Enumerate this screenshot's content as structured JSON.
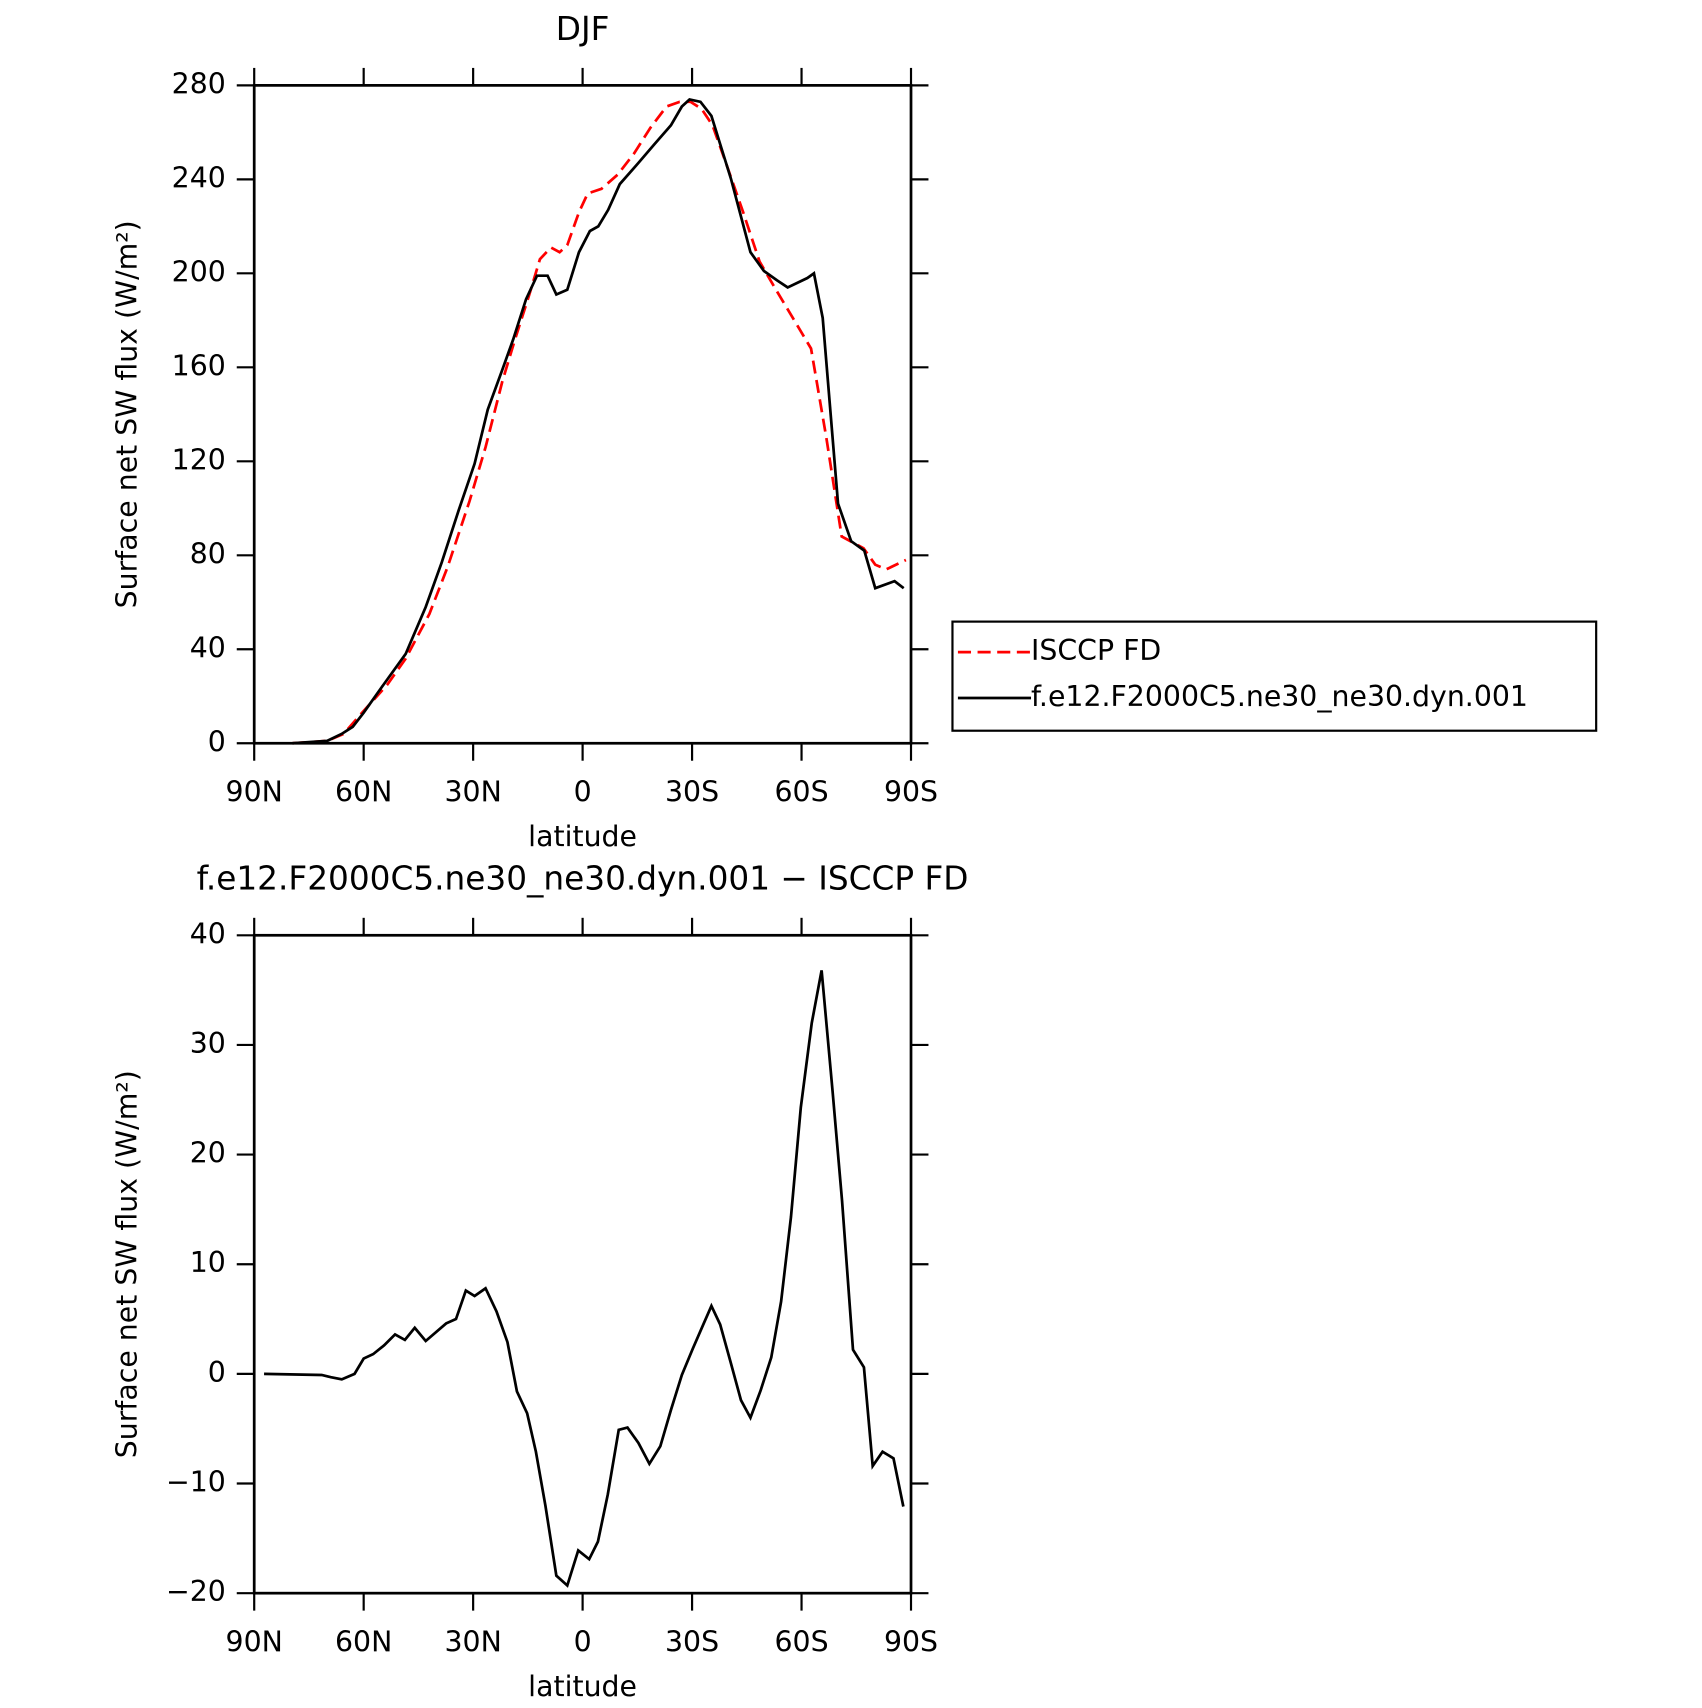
{
  "chart_data": [
    {
      "type": "line",
      "title": "DJF",
      "xlabel": "latitude",
      "ylabel": "Surface net SW flux (W/m²)",
      "xlim": [
        90,
        -90
      ],
      "xticks": [
        {
          "value": 90,
          "label": "90N"
        },
        {
          "value": 60,
          "label": "60N"
        },
        {
          "value": 30,
          "label": "30N"
        },
        0,
        {
          "value": -30,
          "label": "30S"
        },
        {
          "value": -60,
          "label": "60S"
        },
        {
          "value": -90,
          "label": "90S"
        }
      ],
      "ylim": [
        0,
        280
      ],
      "yticks": [
        0,
        40,
        80,
        120,
        160,
        200,
        240,
        280
      ],
      "legend": "right",
      "series": [
        {
          "name": "ISCCP FD",
          "color": "#ff0000",
          "dashed": true,
          "x": [
            79.5,
            70,
            65.5,
            61,
            53.5,
            48.5,
            42,
            37,
            31,
            26.6,
            22,
            18.5,
            14.6,
            11.7,
            8.7,
            6.3,
            4.2,
            1,
            -1.4,
            -5.2,
            -9.6,
            -14.1,
            -18.6,
            -23,
            -26.6,
            -29.6,
            -32.6,
            -35.6,
            -39.5,
            -44,
            -48.5,
            -53,
            -58.4,
            -62.6,
            -66.8,
            -71,
            -77,
            -80.2,
            -83.2,
            -88.6
          ],
          "values": [
            0,
            1,
            4,
            12,
            25,
            36,
            55,
            75,
            103,
            126,
            154,
            172,
            191,
            206,
            211,
            209,
            212,
            226,
            234,
            236,
            242,
            251,
            262,
            271,
            273,
            273,
            270,
            263,
            246,
            226,
            205,
            193,
            179,
            168,
            130,
            88,
            83,
            76,
            74,
            78
          ]
        },
        {
          "name": "f.e12.F2000C5.ne30_ne30.dyn.001",
          "color": "#000000",
          "dashed": false,
          "x": [
            79.5,
            70,
            66,
            63,
            60,
            55,
            48.5,
            43,
            38.6,
            34,
            29.6,
            26,
            22,
            19,
            15.5,
            12.5,
            9.6,
            7.2,
            4.2,
            1,
            -2,
            -4.3,
            -7,
            -10.2,
            -15.3,
            -19.7,
            -24.2,
            -27.2,
            -29.3,
            -32.3,
            -35.3,
            -37.7,
            -40.7,
            -46,
            -49.7,
            -53.3,
            -56.2,
            -61.6,
            -63.4,
            -65.8,
            -70,
            -73.6,
            -77.2,
            -80.2,
            -85.5,
            -88
          ],
          "values": [
            0,
            1,
            4,
            7,
            13,
            24,
            38,
            58,
            77,
            99,
            119,
            142,
            159,
            172,
            189,
            199,
            199,
            191,
            193,
            209,
            218,
            220,
            227,
            238,
            247,
            255,
            263,
            271,
            274,
            273,
            267,
            255,
            240,
            209,
            201,
            197,
            194,
            198,
            200,
            181,
            102,
            86,
            82,
            66,
            69,
            66
          ]
        }
      ]
    },
    {
      "type": "line",
      "title": "f.e12.F2000C5.ne30_ne30.dyn.001 − ISCCP FD",
      "xlabel": "latitude",
      "ylabel": "Surface net SW flux (W/m²)",
      "xlim": [
        90,
        -90
      ],
      "xticks": [
        {
          "value": 90,
          "label": "90N"
        },
        {
          "value": 60,
          "label": "60N"
        },
        {
          "value": 30,
          "label": "30N"
        },
        0,
        {
          "value": -30,
          "label": "30S"
        },
        {
          "value": -60,
          "label": "60S"
        },
        {
          "value": -90,
          "label": "90S"
        }
      ],
      "ylim": [
        -20,
        40
      ],
      "yticks": [
        {
          "value": -20,
          "label": "−20"
        },
        {
          "value": -10,
          "label": "−10"
        },
        0,
        10,
        20,
        30,
        40
      ],
      "series": [
        {
          "color": "#000000",
          "dashed": false,
          "x": [
            87.3,
            71.5,
            69,
            66,
            62.5,
            60,
            57.4,
            54.4,
            51.4,
            48.7,
            46,
            43,
            37.4,
            34.7,
            32,
            29.6,
            26.6,
            23.6,
            20.6,
            18,
            15.2,
            12.8,
            10.2,
            7.2,
            4.2,
            1.2,
            -1.8,
            -4.2,
            -6.9,
            -9.9,
            -12.3,
            -15.3,
            -18.3,
            -21.3,
            -24.2,
            -27.2,
            -30.2,
            -33.2,
            -35.3,
            -37.7,
            -40.7,
            -43.4,
            -46,
            -48.8,
            -51.7,
            -54.4,
            -57.1,
            -59.8,
            -62.8,
            -65.5,
            -68.5,
            -71.1,
            -74.1,
            -77.1,
            -79.5,
            -82.2,
            -85.2,
            -87.9
          ],
          "values": [
            0,
            -0.1,
            -0.3,
            -0.5,
            0,
            1.4,
            1.8,
            2.6,
            3.6,
            3.1,
            4.2,
            3,
            4.6,
            5,
            7.6,
            7.1,
            7.8,
            5.7,
            2.9,
            -1.6,
            -3.6,
            -7.1,
            -12,
            -18.4,
            -19.3,
            -16.1,
            -16.9,
            -15.3,
            -11,
            -5.1,
            -4.9,
            -6.3,
            -8.2,
            -6.6,
            -3.3,
            -0.1,
            2.3,
            4.6,
            6.2,
            4.5,
            0.9,
            -2.4,
            -4,
            -1.5,
            1.5,
            6.6,
            14.3,
            24.3,
            32,
            36.8,
            25.8,
            15.8,
            2.2,
            0.6,
            -8.4,
            -7.1,
            -7.7,
            -12.1
          ]
        }
      ]
    }
  ]
}
